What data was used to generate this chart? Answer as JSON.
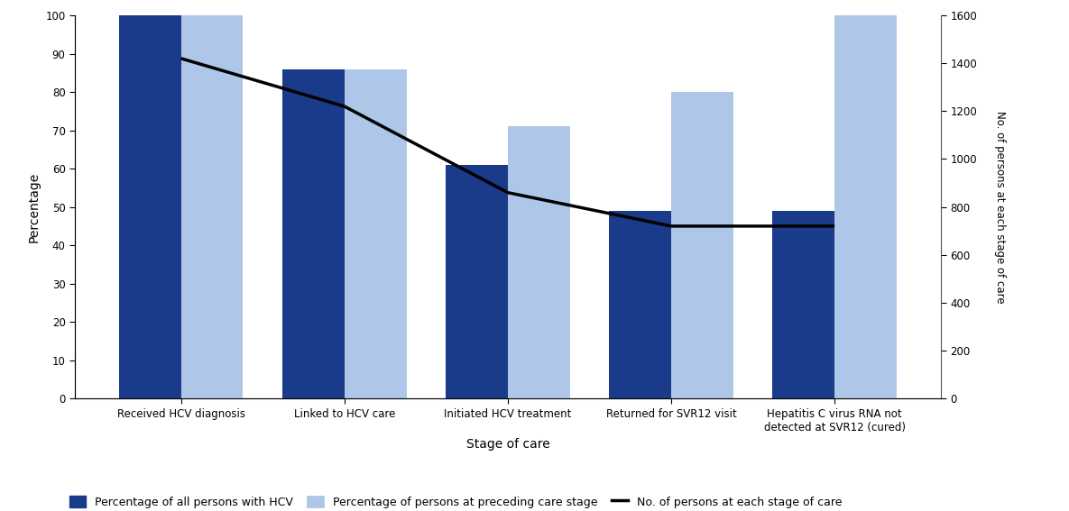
{
  "categories": [
    "Received HCV diagnosis",
    "Linked to HCV care",
    "Initiated HCV treatment",
    "Returned for SVR12 visit",
    "Hepatitis C virus RNA not\ndetected at SVR12 (cured)"
  ],
  "dark_blue_pct": [
    100,
    86,
    61,
    49,
    49
  ],
  "light_blue_pct": [
    100,
    86,
    71,
    80,
    100
  ],
  "line_values": [
    1420,
    1220,
    860,
    720,
    720
  ],
  "dark_blue_color": "#1a3a8a",
  "light_blue_color": "#aec6e8",
  "line_color": "#000000",
  "ylabel_left": "Percentage",
  "ylabel_right": "No. of persons at each stage of care",
  "xlabel": "Stage of care",
  "ylim_left": [
    0,
    100
  ],
  "ylim_right": [
    0,
    1600
  ],
  "yticks_left": [
    0,
    10,
    20,
    30,
    40,
    50,
    60,
    70,
    80,
    90,
    100
  ],
  "yticks_right": [
    0,
    200,
    400,
    600,
    800,
    1000,
    1200,
    1400,
    1600
  ],
  "legend_dark_blue": "Percentage of all persons with HCV",
  "legend_light_blue": "Percentage of persons at preceding care stage",
  "legend_line": "No. of persons at each stage of care",
  "bar_width": 0.38,
  "figsize": [
    11.85,
    5.67
  ],
  "dpi": 100
}
